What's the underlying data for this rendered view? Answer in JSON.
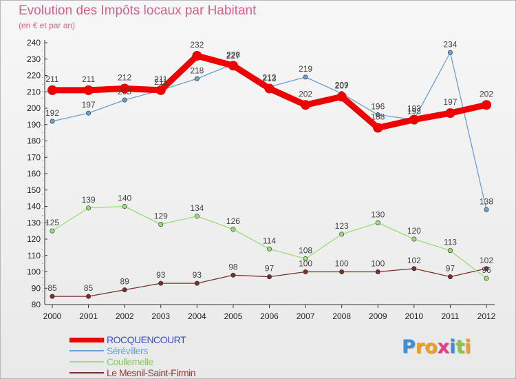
{
  "page": {
    "title": "Evolution des Impôts locaux par Habitant",
    "subtitle": "(en € et par an)"
  },
  "logo": {
    "letters": [
      "P",
      "r",
      "o",
      "x",
      "i",
      "t",
      "i"
    ],
    "colors": [
      "#3a8fd6",
      "#f0a020",
      "#f0a020",
      "#e83a8a",
      "#3a8fd6",
      "#8cc63f",
      "#f0a020"
    ]
  },
  "chart_data": {
    "type": "line",
    "title": "Evolution des Impôts locaux par Habitant",
    "subtitle": "(en € et par an)",
    "xlabel": "",
    "ylabel": "",
    "x": [
      "2000",
      "2001",
      "2002",
      "2003",
      "2004",
      "2005",
      "2006",
      "2007",
      "2008",
      "2009",
      "2010",
      "2011",
      "2012"
    ],
    "ylim": [
      80,
      240
    ],
    "yticks": [
      80,
      90,
      100,
      110,
      120,
      130,
      140,
      150,
      160,
      170,
      180,
      190,
      200,
      210,
      220,
      230,
      240
    ],
    "grid": false,
    "legend_position": "bottom-left",
    "series": [
      {
        "name": "ROCQUENCOURT",
        "color": "#ee0000",
        "labelColor": "#3f4bd8",
        "values": [
          211,
          211,
          212,
          211,
          232,
          226,
          212,
          202,
          207,
          188,
          193,
          197,
          202
        ]
      },
      {
        "name": "Sérévillers",
        "color": "#6a9fd4",
        "labelColor": "#6a9fd4",
        "values": [
          192,
          197,
          205,
          211,
          218,
          227,
          213,
          219,
          209,
          196,
          193,
          234,
          138
        ]
      },
      {
        "name": "Coullemelle",
        "color": "#99dd77",
        "labelColor": "#88cc55",
        "values": [
          125,
          139,
          140,
          129,
          134,
          126,
          114,
          108,
          123,
          130,
          120,
          113,
          96
        ]
      },
      {
        "name": "Le Mesnil-Saint-Firmin",
        "color": "#7a2f2f",
        "labelColor": "#8b3a3a",
        "values": [
          85,
          85,
          89,
          93,
          93,
          98,
          97,
          100,
          100,
          100,
          102,
          97,
          102
        ]
      }
    ]
  }
}
